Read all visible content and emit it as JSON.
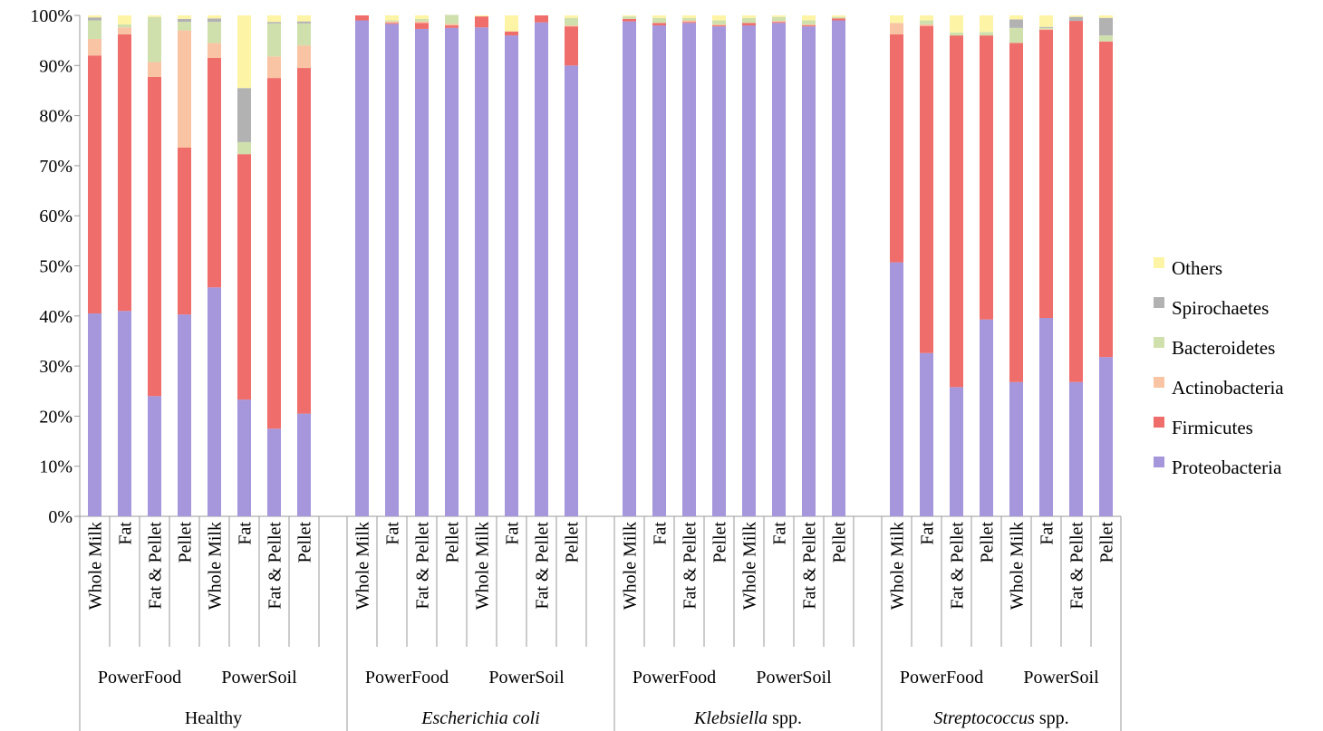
{
  "chart_data": {
    "type": "bar",
    "stacked": true,
    "ylim": [
      0,
      100
    ],
    "yticks": [
      "0%",
      "10%",
      "20%",
      "30%",
      "40%",
      "50%",
      "60%",
      "70%",
      "80%",
      "90%",
      "100%"
    ],
    "categories": [
      "Whole Milk",
      "Fat",
      "Fat & Pellet",
      "Pellet",
      "Whole Milk",
      "Fat",
      "Fat & Pellet",
      "Pellet",
      "Whole Milk",
      "Fat",
      "Fat & Pellet",
      "Pellet",
      "Whole Milk",
      "Fat",
      "Fat & Pellet",
      "Pellet",
      "Whole Milk",
      "Fat",
      "Fat & Pellet",
      "Pellet",
      "Whole Milk",
      "Fat",
      "Fat & Pellet",
      "Pellet",
      "Whole Milk",
      "Fat",
      "Fat & Pellet",
      "Pellet",
      "Whole Milk",
      "Fat",
      "Fat & Pellet",
      "Pellet"
    ],
    "kit_labels": [
      "PowerFood",
      "PowerSoil",
      "PowerFood",
      "PowerSoil",
      "PowerFood",
      "PowerSoil",
      "PowerFood",
      "PowerSoil"
    ],
    "groups": [
      {
        "name_main": "Healthy",
        "name_suffix": "",
        "italic": false
      },
      {
        "name_main": "Escherichia coli",
        "name_suffix": "",
        "italic": true
      },
      {
        "name_main": "Klebsiella",
        "name_suffix": " spp.",
        "italic": true
      },
      {
        "name_main": "Streptococcus",
        "name_suffix": " spp.",
        "italic": true
      }
    ],
    "series": [
      {
        "name": "Proteobacteria",
        "color": "#a696dc",
        "values": [
          40.5,
          41,
          24,
          40.3,
          45.7,
          23.3,
          17.5,
          20.5,
          99,
          98.3,
          97.3,
          97.5,
          97.6,
          96,
          98.6,
          90,
          98.8,
          98,
          98.5,
          97.8,
          98,
          98.5,
          97.8,
          99,
          50.7,
          32.6,
          25.8,
          39.3,
          26.8,
          39.6,
          26.8,
          31.8
        ]
      },
      {
        "name": "Firmicutes",
        "color": "#ef6d6a",
        "values": [
          51.5,
          55.2,
          63.7,
          33.3,
          45.8,
          49,
          70,
          69,
          1,
          0.2,
          1.2,
          0.5,
          2.2,
          0.8,
          1.4,
          7.8,
          0.5,
          0.5,
          0.2,
          0.2,
          0.5,
          0.2,
          0.2,
          0.4,
          45.5,
          65.3,
          70.2,
          56.7,
          67.7,
          57.5,
          72.1,
          63
        ]
      },
      {
        "name": "Actinobacteria",
        "color": "#f8c4a3",
        "values": [
          3.3,
          1.4,
          3,
          23.4,
          3,
          0,
          4.3,
          4.5,
          0,
          0.3,
          0.3,
          0.3,
          0,
          0,
          0,
          0.2,
          0,
          0,
          0.3,
          0.2,
          0,
          0.2,
          0.2,
          0,
          2.3,
          0.3,
          0,
          0,
          0,
          0.2,
          0,
          0
        ]
      },
      {
        "name": "Bacteroidetes",
        "color": "#d0e0ad",
        "values": [
          3.7,
          0.6,
          9,
          1.7,
          4.2,
          2.4,
          6.6,
          4.4,
          0,
          0.2,
          0.5,
          1.8,
          0,
          0,
          0,
          1.5,
          0.5,
          1,
          0.5,
          0.8,
          1,
          0.8,
          0.8,
          0.3,
          0,
          0.8,
          0.6,
          0.7,
          3,
          0.2,
          0,
          1.2
        ]
      },
      {
        "name": "Spirochaetes",
        "color": "#b2b2b2",
        "values": [
          0.6,
          0,
          0,
          0.6,
          0.7,
          10.8,
          0.3,
          0.4,
          0,
          0,
          0,
          0,
          0,
          0,
          0,
          0,
          0,
          0,
          0,
          0,
          0,
          0,
          0,
          0,
          0,
          0,
          0,
          0,
          1.7,
          0.2,
          0.8,
          3.5
        ]
      },
      {
        "name": "Others",
        "color": "#fdf4a6",
        "values": [
          0.4,
          1.8,
          0.3,
          0.7,
          0.6,
          14.5,
          1.3,
          1.2,
          0,
          1,
          0.7,
          0,
          0.2,
          3.2,
          0,
          0.5,
          0.2,
          0.5,
          0.5,
          1,
          0.5,
          0.3,
          1,
          0.3,
          1.5,
          1,
          3.4,
          3.3,
          0.8,
          2.3,
          0.3,
          0.5
        ]
      }
    ],
    "legend_order": [
      "Others",
      "Spirochaetes",
      "Bacteroidetes",
      "Actinobacteria",
      "Firmicutes",
      "Proteobacteria"
    ],
    "legend_position": "right"
  }
}
